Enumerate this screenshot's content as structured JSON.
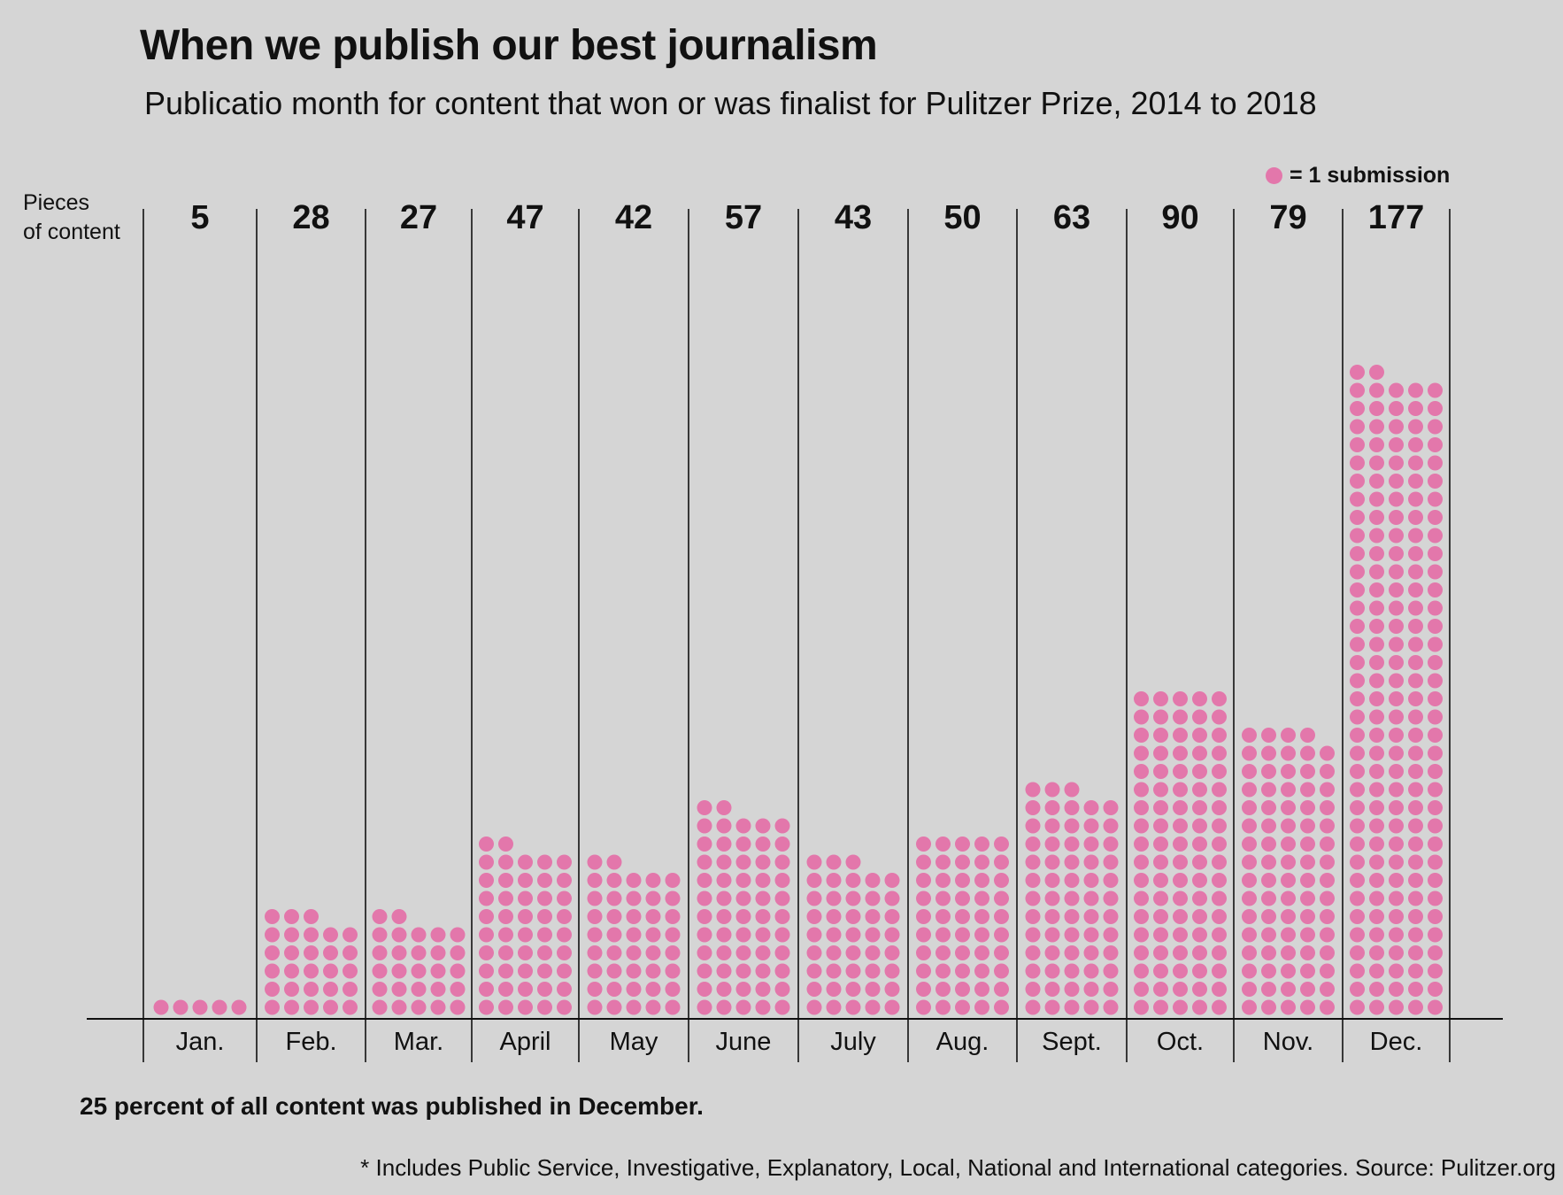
{
  "chart_data": {
    "type": "bar",
    "title": "When we publish our best journalism",
    "subtitle": "Publicatio  month for content that won or was finalist for Pulitzer Prize, 2014 to 2018",
    "ylabel_lines": [
      "Pieces",
      "of content"
    ],
    "xlabel": "",
    "legend": {
      "label": "= 1 submission"
    },
    "dot_color": "#e377ab",
    "categories": [
      "Jan.",
      "Feb.",
      "Mar.",
      "April",
      "May",
      "June",
      "July",
      "Aug.",
      "Sept.",
      "Oct.",
      "Nov.",
      "Dec."
    ],
    "values": [
      5,
      28,
      27,
      47,
      42,
      57,
      43,
      50,
      63,
      90,
      79,
      177
    ],
    "dots_per_row": 5,
    "grid": false
  },
  "annotations": {
    "note": "25 percent of all content was published in December.",
    "source": "* Includes Public Service, Investigative, Explanatory, Local, National and International categories. Source: Pulitzer.org"
  }
}
